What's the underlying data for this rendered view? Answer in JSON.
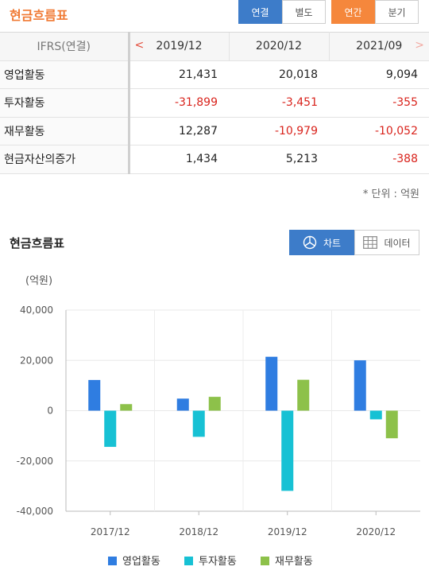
{
  "header": {
    "title": "현금흐름표",
    "consolidated_label": "연결",
    "separate_label": "별도",
    "annual_label": "연간",
    "quarterly_label": "분기"
  },
  "table": {
    "label_header": "IFRS(연결)",
    "periods": [
      "2019/12",
      "2020/12",
      "2021/09"
    ],
    "rows": [
      {
        "label": "영업활동",
        "values": [
          "21,431",
          "20,018",
          "9,094"
        ]
      },
      {
        "label": "투자활동",
        "values": [
          "-31,899",
          "-3,451",
          "-355"
        ]
      },
      {
        "label": "재무활동",
        "values": [
          "12,287",
          "-10,979",
          "-10,052"
        ]
      },
      {
        "label": "현금자산의증가",
        "values": [
          "1,434",
          "5,213",
          "-388"
        ]
      }
    ],
    "unit_note": "* 단위 : 억원"
  },
  "chart_section": {
    "title": "현금흐름표",
    "chart_btn": "차트",
    "data_btn": "데이터"
  },
  "colors": {
    "operating": "#2f7de1",
    "investing": "#17c1d4",
    "financing": "#8dc14a",
    "negative": "#d9231c",
    "accent_orange": "#f5873c",
    "accent_blue": "#3d7cc9"
  },
  "chart_data": {
    "type": "bar",
    "ylabel": "(억원)",
    "categories": [
      "2017/12",
      "2018/12",
      "2019/12",
      "2020/12"
    ],
    "series": [
      {
        "name": "영업활동",
        "values": [
          12200,
          4800,
          21431,
          20018
        ]
      },
      {
        "name": "투자활동",
        "values": [
          -14400,
          -10400,
          -31899,
          -3451
        ]
      },
      {
        "name": "재무활동",
        "values": [
          2600,
          5500,
          12287,
          -10979
        ]
      }
    ],
    "ylim": [
      -40000,
      40000
    ],
    "yticks": [
      "40,000",
      "20,000",
      "0",
      "-20,000",
      "-40,000"
    ],
    "grid": true,
    "legend": "bottom"
  }
}
